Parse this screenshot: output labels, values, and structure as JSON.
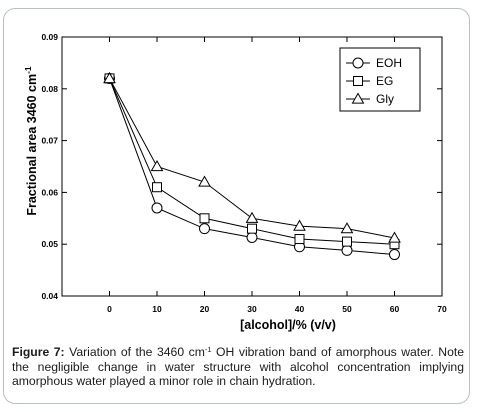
{
  "chart_data": {
    "type": "line",
    "xlabel": "[alcohol]/% (v/v)",
    "ylabel": "Fractional area 3460 cm",
    "ylabel_sup": "-1",
    "xlim": [
      -10,
      70
    ],
    "ylim": [
      0.04,
      0.09
    ],
    "xticks": [
      0,
      10,
      20,
      30,
      40,
      50,
      60,
      70
    ],
    "xtick_labels": [
      "0",
      "10",
      "20",
      "30",
      "40",
      "50",
      "60",
      "70"
    ],
    "yticks": [
      0.04,
      0.05,
      0.06,
      0.07,
      0.08,
      0.09
    ],
    "ytick_labels": [
      "0.04",
      "0.05",
      "0.06",
      "0.07",
      "0.08",
      "0.09"
    ],
    "grid": false,
    "legend_position": "top-right",
    "series": [
      {
        "name": "EOH",
        "marker": "circle",
        "x": [
          0,
          10,
          20,
          30,
          40,
          50,
          60
        ],
        "values": [
          0.082,
          0.057,
          0.053,
          0.0513,
          0.0495,
          0.0488,
          0.048
        ]
      },
      {
        "name": "EG",
        "marker": "square",
        "x": [
          0,
          10,
          20,
          30,
          40,
          50,
          60
        ],
        "values": [
          0.082,
          0.061,
          0.055,
          0.053,
          0.051,
          0.0505,
          0.05
        ]
      },
      {
        "name": "Gly",
        "marker": "triangle",
        "x": [
          0,
          10,
          20,
          30,
          40,
          50,
          60
        ],
        "values": [
          0.082,
          0.065,
          0.062,
          0.055,
          0.0535,
          0.053,
          0.0512
        ]
      }
    ]
  },
  "caption": {
    "label": "Figure 7:",
    "text_before_sup": " Variation of the 3460 cm",
    "sup": "-1",
    "text_after_sup": " OH vibration band of amorphous water. Note the negligible change in water structure with alcohol concentration implying amorphous water played a minor role in chain hydration."
  }
}
